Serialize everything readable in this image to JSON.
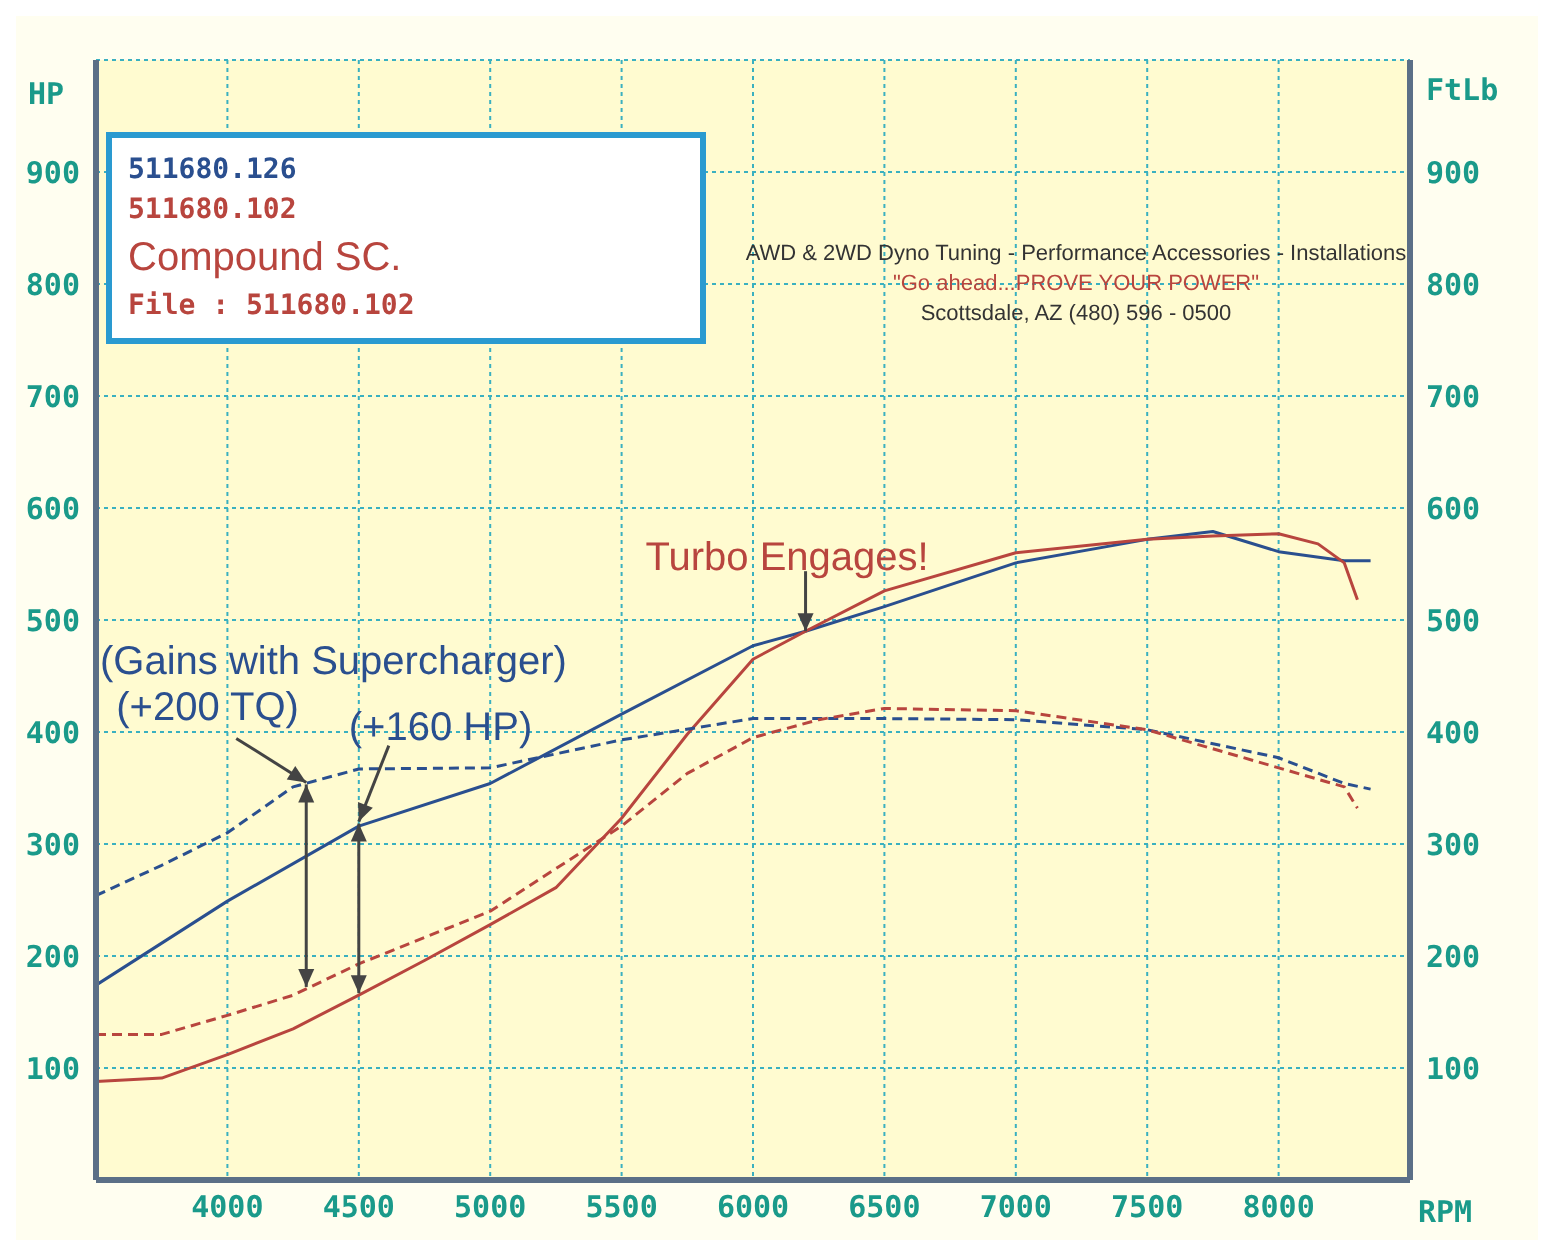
{
  "chart_data": {
    "type": "line",
    "xlabel": "RPM",
    "ylabel": "HP",
    "y2label": "FtLb",
    "xlim": [
      3500,
      8500
    ],
    "xticks": [
      4000,
      4500,
      5000,
      5500,
      6000,
      6500,
      7000,
      7500,
      8000
    ],
    "ylim": [
      0,
      1000
    ],
    "yticks": [
      100,
      200,
      300,
      400,
      500,
      600,
      700,
      800,
      900
    ],
    "y2lim": [
      0,
      1000
    ],
    "y2ticks": [
      100,
      200,
      300,
      400,
      500,
      600,
      700,
      800,
      900
    ],
    "grid": true,
    "legend": "top left",
    "marker": "none",
    "series": [
      {
        "name": "511680.126",
        "color": "#2a4f8f",
        "line_style": "solid",
        "x": [
          3500,
          4000,
          4500,
          5000,
          5500,
          6000,
          6200,
          6500,
          7000,
          7500,
          7750,
          8000,
          8250,
          8350
        ],
        "values": [
          174,
          249,
          316,
          354,
          416,
          477,
          490,
          512,
          551,
          572,
          579,
          561,
          553,
          553
        ]
      },
      {
        "name": "511680.102",
        "color": "#b8453e",
        "line_style": "solid",
        "x": [
          3500,
          3750,
          4000,
          4250,
          4500,
          4750,
          5000,
          5250,
          5500,
          5750,
          6000,
          6200,
          6500,
          7000,
          7500,
          7750,
          8000,
          8150,
          8250,
          8300
        ],
        "values": [
          88,
          91,
          112,
          135,
          165,
          196,
          228,
          261,
          323,
          398,
          465,
          490,
          526,
          560,
          572,
          575,
          577,
          568,
          551,
          518
        ]
      },
      {
        "color": "#2a4f8f",
        "line_style": "dashed",
        "axis": "y2",
        "x": [
          3500,
          3750,
          4000,
          4250,
          4500,
          5000,
          5500,
          6000,
          6500,
          7000,
          7500,
          8000,
          8250,
          8350
        ],
        "values": [
          254,
          281,
          310,
          351,
          367,
          368,
          393,
          412,
          412,
          411,
          402,
          377,
          354,
          349
        ]
      },
      {
        "color": "#b8453e",
        "line_style": "dashed",
        "axis": "y2",
        "x": [
          3500,
          3750,
          4000,
          4250,
          4500,
          5000,
          5500,
          5750,
          6000,
          6250,
          6500,
          7000,
          7500,
          8000,
          8250,
          8300
        ],
        "values": [
          130,
          130,
          147,
          165,
          193,
          240,
          316,
          363,
          395,
          411,
          421,
          419,
          402,
          368,
          351,
          332
        ]
      }
    ],
    "annotations": [
      {
        "text": "Turbo Engages!",
        "x": 6200,
        "y": 490
      },
      "(Gains with Supercharger)",
      {
        "text": "(+200 TQ)",
        "x": 4300,
        "y": 355
      },
      {
        "text": "(+160 HP)",
        "x": 4500,
        "y": 320
      },
      "Compound SC.",
      "File : 511680.102",
      "AWD & 2WD Dyno Tuning - Performance Accessories - Installations",
      "\"Go ahead...PROVE YOUR POWER\"",
      "Scottsdale, AZ (480) 596 - 0500"
    ]
  }
}
